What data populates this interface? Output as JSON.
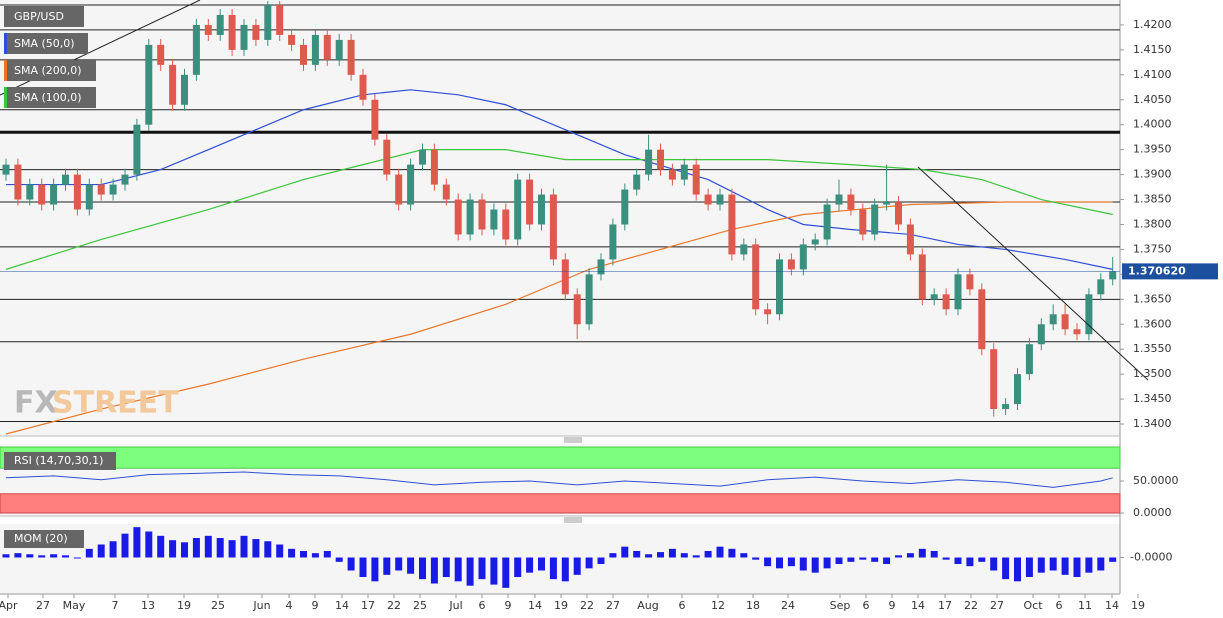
{
  "chart_data": {
    "type": "candlestick",
    "title": "GBP/USD",
    "up_color": "#3a8f7f",
    "down_color": "#df5a4e",
    "open": [
      1.39,
      1.392,
      1.385,
      1.388,
      1.384,
      1.388,
      1.39,
      1.383,
      1.388,
      1.386,
      1.388,
      1.39,
      1.4,
      1.416,
      1.412,
      1.404,
      1.41,
      1.42,
      1.418,
      1.422,
      1.415,
      1.42,
      1.417,
      1.424,
      1.418,
      1.416,
      1.412,
      1.418,
      1.413,
      1.417,
      1.41,
      1.405,
      1.397,
      1.39,
      1.384,
      1.392,
      1.395,
      1.388,
      1.385,
      1.378,
      1.385,
      1.379,
      1.383,
      1.377,
      1.389,
      1.38,
      1.386,
      1.373,
      1.366,
      1.36,
      1.37,
      1.373,
      1.38,
      1.387,
      1.39,
      1.395,
      1.391,
      1.389,
      1.392,
      1.386,
      1.384,
      1.386,
      1.374,
      1.376,
      1.363,
      1.362,
      1.373,
      1.371,
      1.376,
      1.377,
      1.384,
      1.386,
      1.383,
      1.378,
      1.384,
      1.3845,
      1.38,
      1.374,
      1.365,
      1.366,
      1.363,
      1.37,
      1.367,
      1.355,
      1.343,
      1.344,
      1.35,
      1.356,
      1.36,
      1.362,
      1.359,
      1.358,
      1.366,
      1.369
    ],
    "high": [
      1.3932,
      1.3932,
      1.3892,
      1.3892,
      1.3892,
      1.3912,
      1.3912,
      1.3892,
      1.3892,
      1.3892,
      1.3912,
      1.4012,
      1.4172,
      1.4172,
      1.4132,
      1.4112,
      1.4212,
      1.4212,
      1.4232,
      1.4232,
      1.4212,
      1.4212,
      1.4248,
      1.4248,
      1.4192,
      1.4172,
      1.4192,
      1.4192,
      1.4182,
      1.4182,
      1.4112,
      1.4062,
      1.3982,
      1.3912,
      1.3932,
      1.3962,
      1.3962,
      1.3892,
      1.3862,
      1.3862,
      1.3862,
      1.3842,
      1.3842,
      1.3902,
      1.3902,
      1.3872,
      1.3872,
      1.3742,
      1.3672,
      1.3712,
      1.3742,
      1.3812,
      1.3882,
      1.3912,
      1.398,
      1.3962,
      1.3922,
      1.3932,
      1.3932,
      1.3872,
      1.3872,
      1.3872,
      1.3772,
      1.3772,
      1.3642,
      1.3742,
      1.3742,
      1.3772,
      1.3782,
      1.3852,
      1.389,
      1.3872,
      1.3842,
      1.3852,
      1.392,
      1.3857,
      1.3812,
      1.3752,
      1.3672,
      1.3672,
      1.3712,
      1.3712,
      1.3682,
      1.3562,
      1.3452,
      1.3512,
      1.3572,
      1.3612,
      1.364,
      1.364,
      1.3602,
      1.3672,
      1.3702,
      1.3735
    ],
    "low": [
      1.3888,
      1.3838,
      1.3838,
      1.3828,
      1.3828,
      1.3868,
      1.3818,
      1.3818,
      1.3848,
      1.3848,
      1.3868,
      1.3888,
      1.3988,
      1.4108,
      1.4028,
      1.4028,
      1.4088,
      1.4168,
      1.4168,
      1.4138,
      1.4138,
      1.4158,
      1.4158,
      1.4168,
      1.4148,
      1.4108,
      1.4108,
      1.4118,
      1.4118,
      1.4088,
      1.4038,
      1.3958,
      1.3888,
      1.3828,
      1.3828,
      1.3908,
      1.3868,
      1.3838,
      1.3768,
      1.3768,
      1.3778,
      1.3778,
      1.3758,
      1.3758,
      1.3788,
      1.3788,
      1.3718,
      1.3648,
      1.357,
      1.3588,
      1.3688,
      1.3718,
      1.3788,
      1.3858,
      1.3888,
      1.3898,
      1.3878,
      1.3878,
      1.3848,
      1.3828,
      1.3828,
      1.3728,
      1.3728,
      1.3618,
      1.36,
      1.3608,
      1.3698,
      1.3698,
      1.3748,
      1.3758,
      1.3828,
      1.3818,
      1.3768,
      1.3768,
      1.3828,
      1.3788,
      1.3728,
      1.3638,
      1.3638,
      1.3618,
      1.3618,
      1.3658,
      1.3538,
      1.3415,
      1.3418,
      1.3428,
      1.3488,
      1.3548,
      1.3588,
      1.3578,
      1.3568,
      1.3568,
      1.3648,
      1.3678
    ],
    "close": [
      1.392,
      1.385,
      1.388,
      1.384,
      1.388,
      1.39,
      1.383,
      1.388,
      1.386,
      1.388,
      1.39,
      1.4,
      1.416,
      1.412,
      1.404,
      1.41,
      1.42,
      1.418,
      1.422,
      1.415,
      1.42,
      1.417,
      1.424,
      1.418,
      1.416,
      1.412,
      1.418,
      1.413,
      1.417,
      1.41,
      1.405,
      1.397,
      1.39,
      1.384,
      1.392,
      1.395,
      1.388,
      1.385,
      1.378,
      1.385,
      1.379,
      1.383,
      1.377,
      1.389,
      1.38,
      1.386,
      1.373,
      1.366,
      1.36,
      1.37,
      1.373,
      1.38,
      1.387,
      1.39,
      1.395,
      1.391,
      1.389,
      1.392,
      1.386,
      1.384,
      1.386,
      1.374,
      1.376,
      1.363,
      1.362,
      1.373,
      1.371,
      1.376,
      1.377,
      1.384,
      1.386,
      1.383,
      1.378,
      1.384,
      1.3845,
      1.38,
      1.374,
      1.365,
      1.366,
      1.363,
      1.37,
      1.367,
      1.355,
      1.343,
      1.344,
      1.35,
      1.356,
      1.36,
      1.362,
      1.359,
      1.358,
      1.366,
      1.369,
      1.3706
    ],
    "last_price_label": "1.370620",
    "last_price_color": "#1c4f9e",
    "series": [
      {
        "name": "SMA (50,0)",
        "color": "#2f4fd6",
        "x": [
          0,
          8,
          13,
          17,
          21,
          25,
          30,
          34,
          38,
          42,
          47,
          52,
          59,
          64,
          67,
          71,
          76,
          80,
          84,
          89,
          93
        ],
        "values": [
          1.388,
          1.388,
          1.391,
          1.395,
          1.399,
          1.403,
          1.406,
          1.407,
          1.406,
          1.404,
          1.399,
          1.394,
          1.389,
          1.383,
          1.38,
          1.379,
          1.378,
          1.376,
          1.375,
          1.373,
          1.371
        ]
      },
      {
        "name": "SMA (200,0)",
        "color": "#e8772a",
        "x": [
          0,
          8,
          17,
          25,
          34,
          42,
          49,
          55,
          61,
          67,
          76,
          84,
          93
        ],
        "values": [
          1.338,
          1.343,
          1.348,
          1.353,
          1.358,
          1.364,
          1.371,
          1.375,
          1.379,
          1.382,
          1.384,
          1.3845,
          1.3845
        ]
      },
      {
        "name": "SMA (100,0)",
        "color": "#3cc43c",
        "x": [
          0,
          8,
          17,
          25,
          30,
          35,
          42,
          47,
          52,
          59,
          64,
          71,
          77,
          82,
          87,
          93
        ],
        "values": [
          1.371,
          1.377,
          1.383,
          1.389,
          1.392,
          1.395,
          1.395,
          1.393,
          1.393,
          1.393,
          1.393,
          1.392,
          1.391,
          1.389,
          1.385,
          1.382
        ]
      }
    ],
    "levels": [
      1.424,
      1.419,
      1.413,
      1.403,
      1.391,
      1.3845,
      1.3755,
      1.365,
      1.3565,
      1.3405
    ],
    "key_level": 1.3985,
    "ylim": [
      1.3376,
      1.425
    ],
    "yticks": [
      {
        "value": 1.42,
        "label": "1.4200"
      },
      {
        "value": 1.415,
        "label": "1.4150"
      },
      {
        "value": 1.41,
        "label": "1.4100"
      },
      {
        "value": 1.405,
        "label": "1.4050"
      },
      {
        "value": 1.4,
        "label": "1.4000"
      },
      {
        "value": 1.395,
        "label": "1.3950"
      },
      {
        "value": 1.39,
        "label": "1.3900"
      },
      {
        "value": 1.385,
        "label": "1.3850"
      },
      {
        "value": 1.38,
        "label": "1.3800"
      },
      {
        "value": 1.375,
        "label": "1.3750"
      },
      {
        "value": 1.37,
        "label": "1.3700"
      },
      {
        "value": 1.365,
        "label": "1.3650"
      },
      {
        "value": 1.36,
        "label": "1.3600"
      },
      {
        "value": 1.355,
        "label": "1.3550"
      },
      {
        "value": 1.35,
        "label": "1.3500"
      },
      {
        "value": 1.345,
        "label": "1.3450"
      },
      {
        "value": 1.34,
        "label": "1.3400"
      }
    ],
    "watermark": [
      "FX",
      "STREET"
    ],
    "x_labels": [
      "Apr",
      "27",
      "May",
      "7",
      "13",
      "19",
      "25",
      "Jun",
      "4",
      "9",
      "14",
      "17",
      "22",
      "25",
      "Jul",
      "6",
      "9",
      "14",
      "19",
      "22",
      "27",
      "Aug",
      "6",
      "12",
      "18",
      "24",
      "Sep",
      "6",
      "9",
      "14",
      "17",
      "22",
      "27",
      "Oct",
      "6",
      "11",
      "14",
      "19"
    ],
    "rsi": {
      "label": "RSI (14,70,30,1)",
      "color": "#2f4fd6",
      "x": [
        0,
        4,
        8,
        12,
        16,
        20,
        24,
        28,
        32,
        36,
        40,
        44,
        48,
        52,
        56,
        60,
        64,
        68,
        72,
        76,
        80,
        84,
        88,
        92,
        93
      ],
      "values": [
        55,
        58,
        52,
        60,
        62,
        64,
        60,
        58,
        52,
        44,
        48,
        50,
        44,
        50,
        46,
        42,
        52,
        56,
        50,
        46,
        52,
        48,
        40,
        50,
        55
      ],
      "overbought": 70,
      "oversold": 30,
      "ylim": [
        0,
        100
      ],
      "yticks": [
        {
          "value": 50,
          "label": "50.0000"
        },
        {
          "value": 0,
          "label": "0.0000"
        }
      ]
    },
    "mom": {
      "label": "MOM (20)",
      "color": "#1a1ae6",
      "values": [
        0.003,
        0.004,
        0.003,
        0.002,
        0.003,
        0.002,
        0.0,
        0.008,
        0.012,
        0.015,
        0.022,
        0.028,
        0.024,
        0.02,
        0.016,
        0.014,
        0.018,
        0.02,
        0.018,
        0.016,
        0.02,
        0.017,
        0.015,
        0.012,
        0.008,
        0.006,
        0.004,
        0.006,
        -0.004,
        -0.012,
        -0.018,
        -0.022,
        -0.016,
        -0.012,
        -0.015,
        -0.02,
        -0.024,
        -0.018,
        -0.022,
        -0.026,
        -0.02,
        -0.025,
        -0.028,
        -0.018,
        -0.014,
        -0.012,
        -0.02,
        -0.022,
        -0.016,
        -0.01,
        -0.006,
        0.004,
        0.01,
        0.006,
        0.003,
        0.005,
        0.008,
        0.004,
        0.002,
        0.006,
        0.01,
        0.008,
        0.004,
        -0.002,
        -0.008,
        -0.01,
        -0.008,
        -0.012,
        -0.014,
        -0.01,
        -0.006,
        -0.004,
        -0.002,
        -0.004,
        -0.006,
        0.002,
        0.004,
        0.008,
        0.006,
        -0.002,
        -0.006,
        -0.008,
        -0.004,
        -0.012,
        -0.02,
        -0.022,
        -0.018,
        -0.014,
        -0.012,
        -0.016,
        -0.018,
        -0.014,
        -0.012,
        -0.004
      ],
      "ylim": [
        -0.03,
        0.03
      ],
      "yticks": [
        {
          "value": 0,
          "label": "-0.0000"
        }
      ]
    }
  }
}
